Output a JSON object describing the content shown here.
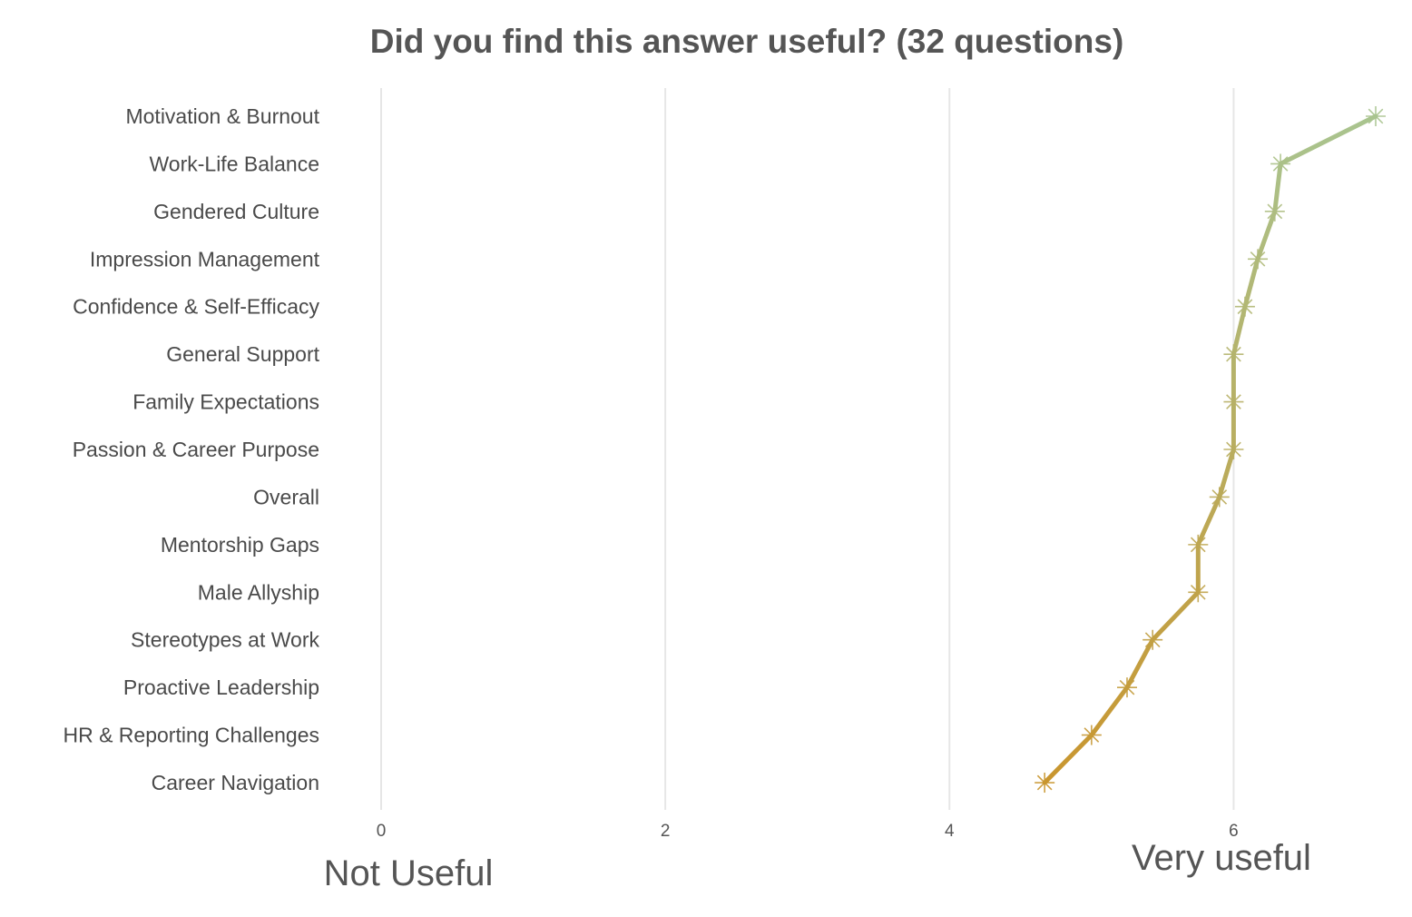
{
  "chart_data": {
    "type": "line",
    "title": "Did you find this answer useful? (32 questions)",
    "orientation": "horizontal",
    "categories": [
      "Motivation & Burnout",
      "Work-Life Balance",
      "Gendered Culture",
      "Impression Management",
      "Confidence & Self-Efficacy",
      "General Support",
      "Family Expectations",
      "Passion & Career Purpose",
      "Overall",
      "Mentorship Gaps",
      "Male Allyship",
      "Stereotypes at Work",
      "Proactive Leadership",
      "HR & Reporting Challenges",
      "Career Navigation"
    ],
    "values": [
      7.0,
      6.33,
      6.29,
      6.17,
      6.08,
      6.0,
      6.0,
      6.0,
      5.9,
      5.75,
      5.75,
      5.43,
      5.25,
      5.0,
      4.67
    ],
    "xlim": [
      0,
      7
    ],
    "xticks": [
      "0",
      "2",
      "4",
      "6"
    ],
    "xtick_values": [
      0,
      2,
      4,
      6
    ],
    "annotations": {
      "low_end": "Not Useful",
      "high_end": "Very useful"
    },
    "marker": "asterisk",
    "grid": "vertical",
    "legend": "none",
    "colors": {
      "line_low": "#c9962f",
      "line_high": "#a9c48f",
      "grid": "#e6e6e6",
      "text": "#555555"
    }
  }
}
